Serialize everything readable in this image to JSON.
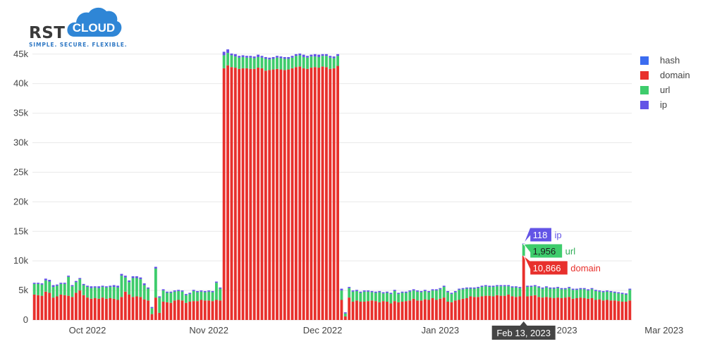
{
  "logo": {
    "word": "RST",
    "cloud_word": "CLOUD",
    "tagline": "SIMPLE. SECURE. FLEXIBLE."
  },
  "colors": {
    "hash": "#3b6cf0",
    "domain": "#e8302c",
    "url": "#3ecc6c",
    "ip": "#6354e6",
    "tooltip_date_bg": "#444444"
  },
  "chart_data": {
    "type": "bar",
    "stacked": true,
    "y_ticks": [
      "0",
      "5k",
      "10k",
      "15k",
      "20k",
      "25k",
      "30k",
      "35k",
      "40k",
      "45k"
    ],
    "ylim": [
      0,
      47000
    ],
    "x_ticks": [
      "Oct 2022",
      "Nov 2022",
      "Dec 2022",
      "Jan 2023",
      "Feb 2023",
      "Mar 2023"
    ],
    "legend": [
      "hash",
      "domain",
      "url",
      "ip"
    ],
    "series": [
      {
        "name": "domain",
        "values": [
          4300,
          4200,
          4100,
          4800,
          4600,
          3800,
          4000,
          4300,
          4200,
          4100,
          3900,
          4600,
          5000,
          4200,
          3800,
          3600,
          3700,
          3600,
          3800,
          3600,
          3700,
          3600,
          3400,
          3900,
          4800,
          4300,
          3900,
          4000,
          3900,
          3500,
          3300,
          1000,
          3800,
          1200,
          3100,
          3000,
          2900,
          3300,
          3400,
          3300,
          2900,
          3100,
          3200,
          3200,
          3400,
          3300,
          3300,
          3200,
          3400,
          3300,
          42600,
          43100,
          42800,
          42700,
          42500,
          42600,
          42600,
          42500,
          42500,
          42700,
          42600,
          42200,
          42300,
          42400,
          42500,
          42400,
          42300,
          42400,
          42600,
          42800,
          42900,
          42600,
          42500,
          42700,
          42800,
          42700,
          42900,
          42800,
          42500,
          42600,
          43000,
          3400,
          600,
          3800,
          3100,
          3300,
          3100,
          3100,
          3200,
          3300,
          3200,
          3000,
          3200,
          3100,
          2800,
          3200,
          3000,
          3100,
          3200,
          3300,
          3600,
          3300,
          3300,
          3500,
          3400,
          3700,
          3400,
          3600,
          3800,
          3100,
          3000,
          3300,
          3400,
          3600,
          3700,
          4000,
          3900,
          3900,
          4000,
          4100,
          4100,
          4000,
          4200,
          4100,
          4100,
          4300,
          4000,
          3900,
          4000,
          10866,
          4000,
          4100,
          4200,
          3900,
          3800,
          3900,
          3800,
          3700,
          3800,
          3700,
          3800,
          3900,
          3600,
          3700,
          3800,
          3700,
          3600,
          3700,
          3400,
          3500,
          3300,
          3400,
          3300,
          3300,
          3200,
          3100,
          3100,
          3300
        ],
        "color": "#e8302c"
      },
      {
        "name": "url",
        "values": [
          1800,
          1900,
          1900,
          1900,
          1900,
          1800,
          1800,
          1800,
          1900,
          3200,
          1800,
          1800,
          1900,
          1700,
          1800,
          1800,
          1800,
          1800,
          1800,
          1900,
          1900,
          2000,
          2100,
          3600,
          2400,
          2100,
          3200,
          3100,
          3000,
          2400,
          2000,
          1000,
          4900,
          2600,
          1900,
          1600,
          1700,
          1500,
          1500,
          1500,
          1300,
          1300,
          1700,
          1500,
          1400,
          1400,
          1500,
          1500,
          2900,
          2000,
          2200,
          2100,
          2000,
          1900,
          1900,
          1900,
          1800,
          1900,
          1800,
          1800,
          1800,
          2000,
          1800,
          1800,
          1900,
          1900,
          1900,
          1800,
          1800,
          1900,
          1900,
          1900,
          1900,
          1900,
          1800,
          1800,
          1800,
          1900,
          1900,
          1700,
          1700,
          1600,
          500,
          1600,
          1700,
          1600,
          1500,
          1700,
          1600,
          1400,
          1400,
          1700,
          1300,
          1500,
          1600,
          1700,
          1400,
          1500,
          1400,
          1500,
          1400,
          1500,
          1400,
          1400,
          1300,
          1300,
          1600,
          1600,
          1800,
          1600,
          1400,
          1400,
          1700,
          1600,
          1600,
          1300,
          1400,
          1500,
          1600,
          1600,
          1500,
          1600,
          1500,
          1600,
          1600,
          1400,
          1500,
          1600,
          1400,
          1956,
          1600,
          1500,
          1500,
          1600,
          1500,
          1600,
          1500,
          1600,
          1600,
          1500,
          1400,
          1500,
          1500,
          1400,
          1400,
          1500,
          1400,
          1500,
          1500,
          1300,
          1400,
          1400,
          1400,
          1300,
          1300,
          1300,
          1200,
          1800
        ],
        "color": "#3ecc6c"
      },
      {
        "name": "ip",
        "values": [
          200,
          200,
          200,
          300,
          300,
          300,
          200,
          200,
          200,
          200,
          200,
          200,
          200,
          200,
          200,
          300,
          200,
          300,
          200,
          200,
          200,
          300,
          300,
          300,
          300,
          300,
          300,
          300,
          300,
          300,
          200,
          200,
          300,
          200,
          200,
          200,
          200,
          200,
          200,
          200,
          200,
          200,
          200,
          200,
          200,
          200,
          200,
          200,
          200,
          200,
          600,
          600,
          300,
          400,
          300,
          300,
          300,
          300,
          300,
          400,
          300,
          300,
          300,
          300,
          300,
          300,
          300,
          300,
          300,
          300,
          300,
          400,
          300,
          300,
          400,
          400,
          300,
          300,
          300,
          300,
          300,
          300,
          200,
          200,
          200,
          200,
          200,
          200,
          200,
          200,
          200,
          200,
          200,
          200,
          200,
          200,
          200,
          200,
          200,
          200,
          200,
          200,
          200,
          200,
          200,
          200,
          200,
          200,
          200,
          200,
          200,
          200,
          200,
          200,
          200,
          200,
          200,
          200,
          200,
          200,
          200,
          200,
          200,
          200,
          200,
          200,
          200,
          200,
          200,
          118,
          200,
          200,
          200,
          200,
          200,
          200,
          200,
          200,
          200,
          200,
          200,
          200,
          200,
          200,
          200,
          200,
          200,
          200,
          200,
          200,
          200,
          200,
          200,
          200,
          200,
          200,
          200,
          200
        ],
        "color": "#6354e6"
      },
      {
        "name": "hash",
        "values": [
          0,
          0,
          0,
          0,
          0,
          0,
          0,
          0,
          0,
          0,
          0,
          0,
          0,
          0,
          0,
          0,
          0,
          0,
          0,
          0,
          0,
          0,
          0,
          0,
          0,
          0,
          0,
          0,
          0,
          0,
          0,
          0,
          0,
          0,
          0,
          0,
          0,
          0,
          0,
          0,
          0,
          0,
          0,
          0,
          0,
          0,
          0,
          0,
          0,
          0,
          0,
          0,
          0,
          0,
          0,
          0,
          0,
          0,
          0,
          0,
          0,
          0,
          0,
          0,
          0,
          0,
          0,
          0,
          0,
          0,
          0,
          0,
          0,
          0,
          0,
          0,
          0,
          0,
          0,
          0,
          0,
          0,
          0,
          0,
          0,
          0,
          0,
          0,
          0,
          0,
          0,
          0,
          0,
          0,
          0,
          0,
          0,
          0,
          0,
          0,
          0,
          0,
          0,
          0,
          0,
          0,
          0,
          0,
          0,
          0,
          0,
          0,
          0,
          0,
          0,
          0,
          0,
          0,
          0,
          0,
          0,
          0,
          0,
          0,
          0,
          0,
          0,
          0,
          0,
          0,
          0,
          0,
          0,
          0,
          0,
          0,
          0,
          0,
          0,
          0,
          0,
          0,
          0,
          0,
          0,
          0,
          0,
          0,
          0,
          0,
          0,
          0,
          0,
          0,
          0,
          0,
          0,
          0
        ],
        "color": "#3b6cf0"
      }
    ],
    "hover": {
      "date": "Feb 13, 2023",
      "ip_label": "118",
      "ip_name": "ip",
      "url_label": "1,956",
      "url_name": "url",
      "domain_label": "10,866",
      "domain_name": "domain"
    }
  }
}
